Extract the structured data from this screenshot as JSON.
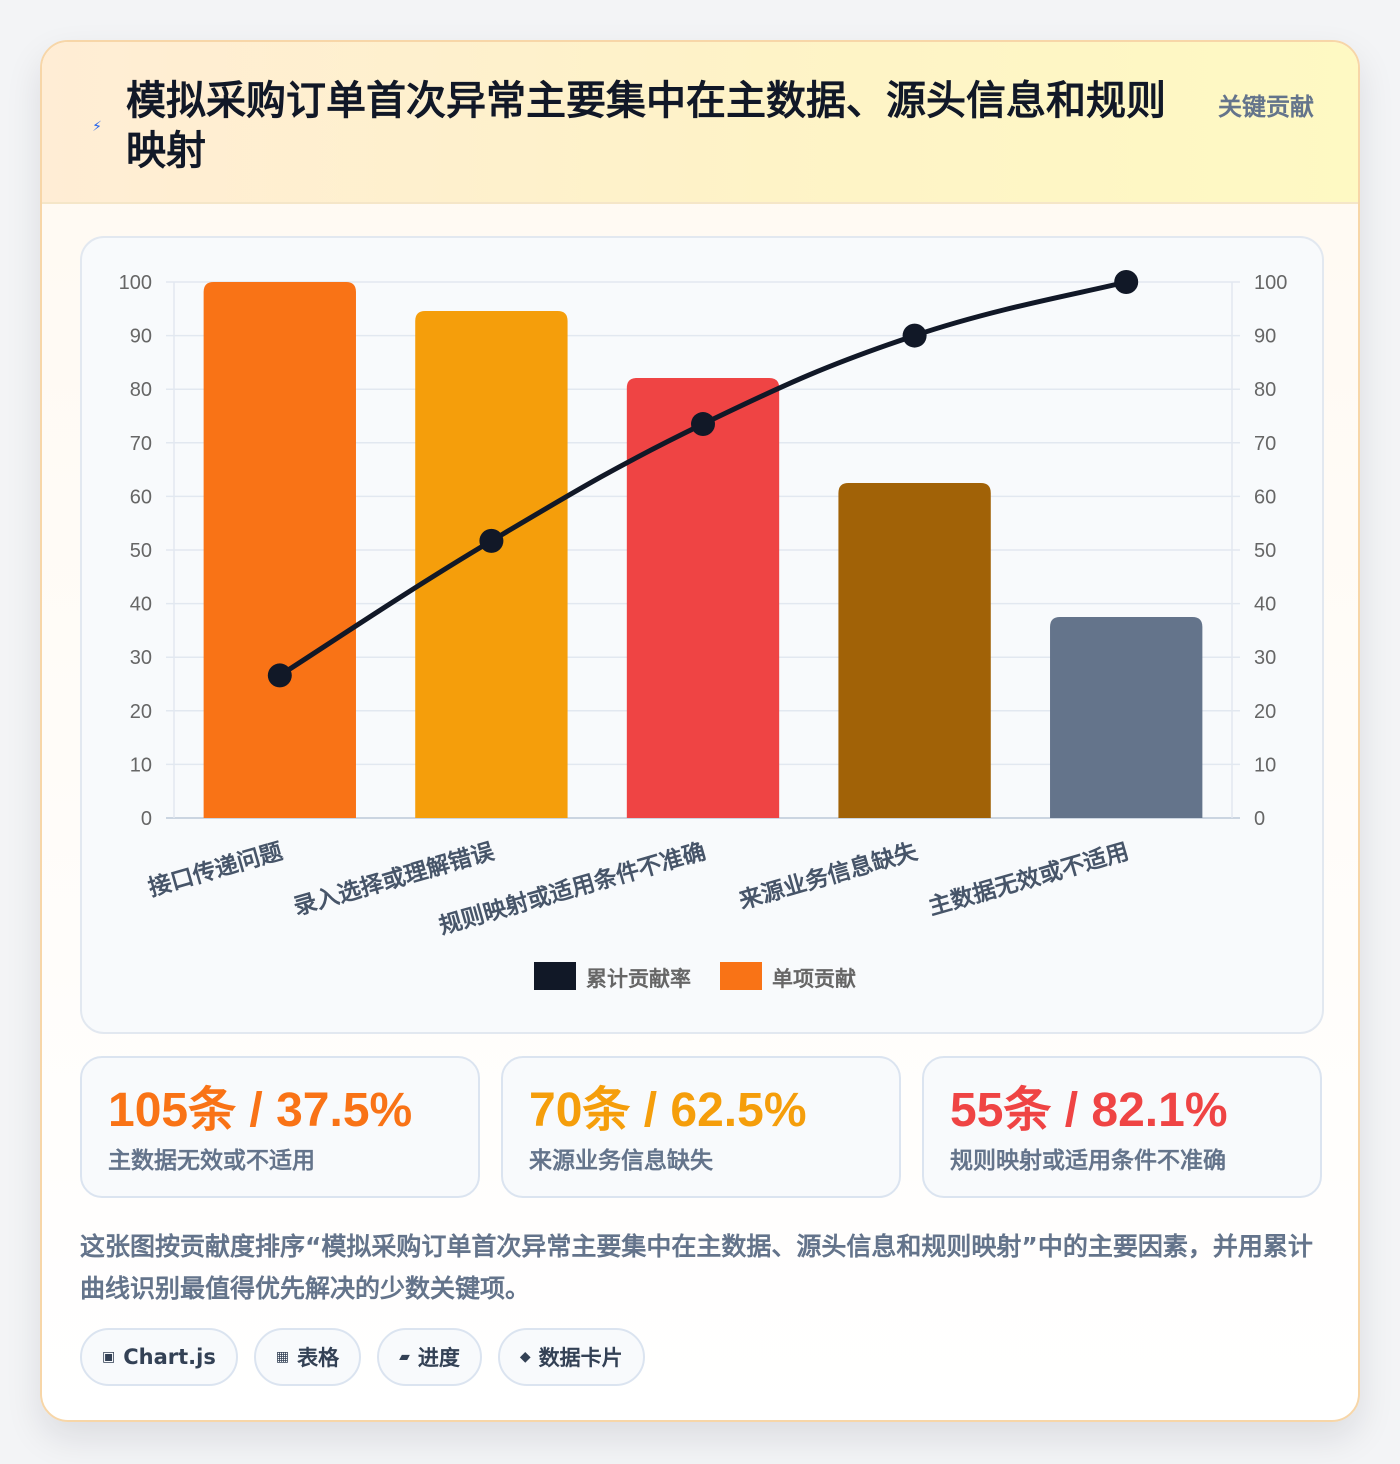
{
  "header": {
    "icon": "lightning-icon",
    "title": "模拟采购订单首次异常主要集中在主数据、源头信息和规则映射",
    "tag": "关键贡献"
  },
  "chart_data": {
    "type": "bar",
    "categories": [
      "接口传递问题",
      "录入选择或理解错误",
      "规则映射或适用条件不准确",
      "来源业务信息缺失",
      "主数据无效或不适用"
    ],
    "bar_colors": [
      "#f97316",
      "#f59e0b",
      "#ef4444",
      "#a16207",
      "#64748b"
    ],
    "series": [
      {
        "name": "累计贡献率",
        "type": "line",
        "axis": "right",
        "color": "#111827",
        "values": [
          26.6,
          51.7,
          73.5,
          90,
          100
        ]
      },
      {
        "name": "单项贡献",
        "type": "bar",
        "axis": "left",
        "color": "#f97316",
        "values": [
          100,
          94.6,
          82.1,
          62.5,
          37.5
        ]
      }
    ],
    "y_left": {
      "min": 0,
      "max": 100,
      "ticks": [
        0,
        10,
        20,
        30,
        40,
        50,
        60,
        70,
        80,
        90,
        100
      ]
    },
    "y_right": {
      "min": 0,
      "max": 100,
      "ticks": [
        0,
        10,
        20,
        30,
        40,
        50,
        60,
        70,
        80,
        90,
        100
      ]
    },
    "grid": true,
    "legend_position": "bottom"
  },
  "stats": [
    {
      "value": "105条 / 37.5%",
      "label": "主数据无效或不适用",
      "color": "#f97316"
    },
    {
      "value": "70条 / 62.5%",
      "label": "来源业务信息缺失",
      "color": "#f59e0b"
    },
    {
      "value": "55条 / 82.1%",
      "label": "规则映射或适用条件不准确",
      "color": "#ef4444"
    }
  ],
  "description": "这张图按贡献度排序“模拟采购订单首次异常主要集中在主数据、源头信息和规则映射”中的主要因素，并用累计曲线识别最值得优先解决的少数关键项。",
  "tags": [
    {
      "icon": "▣",
      "icon_name": "chart-icon",
      "label": "Chart.js"
    },
    {
      "icon": "▦",
      "icon_name": "table-icon",
      "label": "表格"
    },
    {
      "icon": "▰",
      "icon_name": "progress-icon",
      "label": "进度"
    },
    {
      "icon": "◆",
      "icon_name": "card-icon",
      "label": "数据卡片"
    }
  ]
}
